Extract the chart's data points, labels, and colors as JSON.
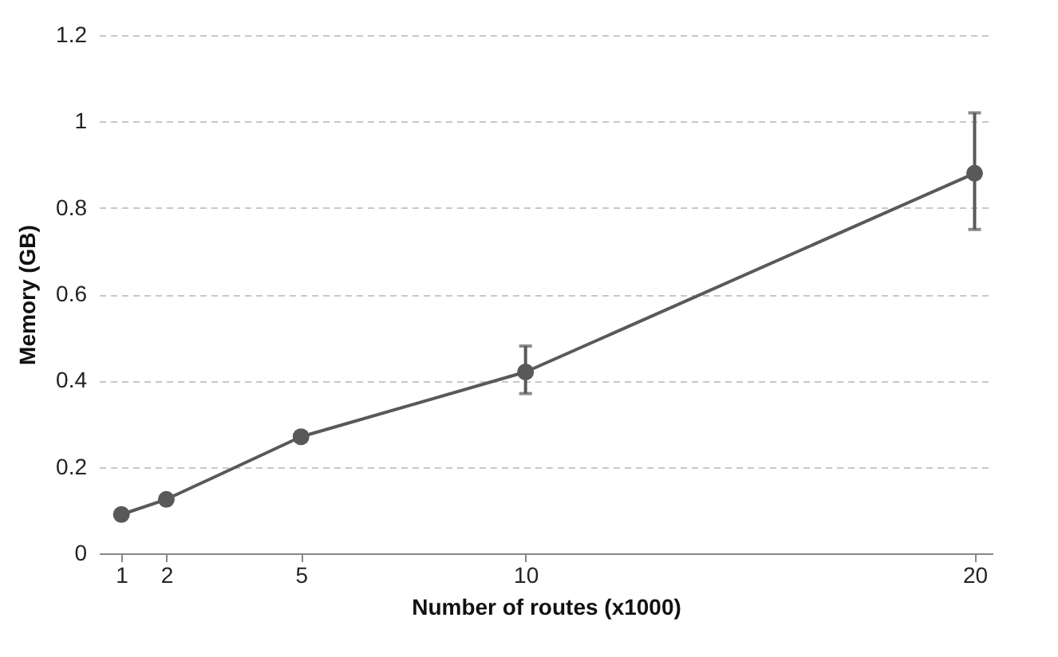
{
  "chart_data": {
    "type": "line",
    "xlabel": "Number of routes (x1000)",
    "ylabel": "Memory (GB)",
    "x": [
      1,
      2,
      5,
      10,
      20
    ],
    "series": [
      {
        "color": "#595959",
        "values": [
          0.09,
          0.125,
          0.27,
          0.42,
          0.88
        ],
        "errors": [
          null,
          null,
          0.01,
          [
            0.37,
            0.48
          ],
          [
            0.75,
            1.02
          ]
        ]
      }
    ],
    "xlim": [
      0.5,
      20.4
    ],
    "xticks": [
      1,
      2,
      5,
      10,
      20
    ],
    "ylim": [
      0,
      1.2
    ],
    "yticks": [
      0,
      0.2,
      0.4,
      0.6,
      0.8,
      1,
      1.2
    ],
    "grid": "y",
    "marker": "circle",
    "line_style": "solid",
    "legend": false
  }
}
